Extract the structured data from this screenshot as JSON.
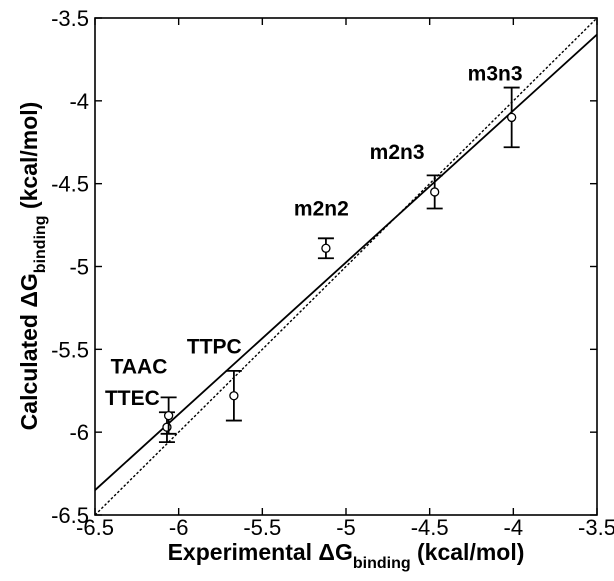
{
  "chart_data": {
    "type": "scatter",
    "xlabel": {
      "main": "Experimental ΔG",
      "sub": "binding",
      "unit": " (kcal/mol)"
    },
    "ylabel": {
      "main": "Calculated ΔG",
      "sub": "binding",
      "unit": " (kcal/mol)"
    },
    "xlim": [
      -6.5,
      -3.5
    ],
    "ylim": [
      -6.5,
      -3.5
    ],
    "xticks": [
      -6.5,
      -6,
      -5.5,
      -5,
      -4.5,
      -4,
      -3.5
    ],
    "yticks": [
      -6.5,
      -6,
      -5.5,
      -5,
      -4.5,
      -4,
      -3.5
    ],
    "xtick_labels": [
      "-6.5",
      "-6",
      "-5.5",
      "-5",
      "-4.5",
      "-4",
      "-3.5"
    ],
    "ytick_labels": [
      "-6.5",
      "-6",
      "-5.5",
      "-5",
      "-4.5",
      "-4",
      "-3.5"
    ],
    "grid": false,
    "points": [
      {
        "label": "TTEC",
        "x": -6.07,
        "y": -5.97,
        "err": 0.09
      },
      {
        "label": "TAAC",
        "x": -6.06,
        "y": -5.9,
        "err": 0.11
      },
      {
        "label": "TTPC",
        "x": -5.67,
        "y": -5.78,
        "err": 0.15
      },
      {
        "label": "m2n2",
        "x": -5.12,
        "y": -4.89,
        "err": 0.06
      },
      {
        "label": "m2n3",
        "x": -4.47,
        "y": -4.55,
        "err": 0.1
      },
      {
        "label": "m3n3",
        "x": -4.01,
        "y": -4.1,
        "err": 0.18
      }
    ],
    "lines": [
      {
        "style": "solid",
        "x": [
          -6.5,
          -3.5
        ],
        "y": [
          -6.35,
          -3.6
        ]
      },
      {
        "style": "dotted",
        "x": [
          -6.5,
          -3.5
        ],
        "y": [
          -6.5,
          -3.5
        ]
      }
    ]
  }
}
